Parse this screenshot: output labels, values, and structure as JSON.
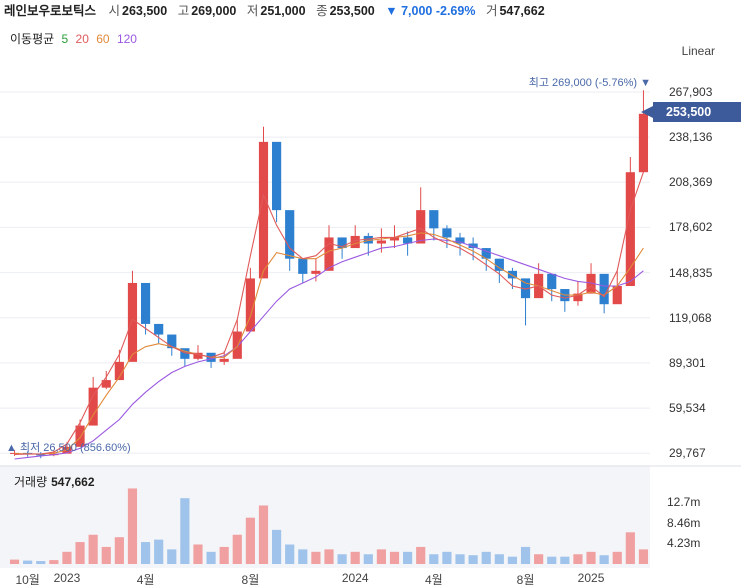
{
  "header": {
    "name": "레인보우로보틱스",
    "open_label": "시",
    "open": "263,500",
    "high_label": "고",
    "high": "269,000",
    "low_label": "저",
    "low": "251,000",
    "close_label": "종",
    "close": "253,500",
    "change": "▼ 7,000 -2.69%",
    "volume_label": "거",
    "volume": "547,662"
  },
  "ma_legend": {
    "title": "이동평균",
    "ma5": "5",
    "ma20": "20",
    "ma60": "60",
    "ma120": "120"
  },
  "scale_mode": "Linear",
  "current_price_label": "253,500",
  "max_marker": "최고 269,000 (-5.76%) ▼",
  "min_marker": "▲ 최저 26,500 (856.60%)",
  "volume_panel": {
    "title": "거래량",
    "value": "547,662"
  },
  "colors": {
    "up": "#e24a4a",
    "down": "#2d7fd0",
    "ma5": "#2a9d3a",
    "ma20": "#e05a5a",
    "ma60": "#e08a3a",
    "ma120": "#9b59e0",
    "accent": "#3d5a9b"
  },
  "chart_data": {
    "type": "candlestick",
    "y_ticks": [
      "267,903",
      "238,136",
      "208,369",
      "178,602",
      "148,835",
      "119,068",
      "89,301",
      "59,534",
      "29,767"
    ],
    "y_tick_values": [
      267903,
      238136,
      208369,
      178602,
      148835,
      119068,
      89301,
      59534,
      29767
    ],
    "ylim": [
      24000,
      285000
    ],
    "x_ticks": [
      "10월",
      "2023",
      "4월",
      "8월",
      "2024",
      "4월",
      "8월",
      "2025"
    ],
    "x_tick_index": [
      1,
      4,
      10,
      18,
      26,
      32,
      39,
      44
    ],
    "volume_ticks": [
      "12.7m",
      "8.46m",
      "4.23m"
    ],
    "volume_tick_values": [
      12700000,
      8460000,
      4230000
    ],
    "volume_max": 16000000,
    "series_close": [
      30000,
      29000,
      28500,
      29500,
      34000,
      48000,
      73000,
      78000,
      90000,
      142000,
      115000,
      108000,
      99000,
      92000,
      96000,
      90000,
      92000,
      110000,
      145000,
      235000,
      190000,
      158000,
      148000,
      150000,
      172000,
      165000,
      173000,
      168000,
      170000,
      172000,
      168000,
      190000,
      178000,
      172000,
      168000,
      165000,
      158000,
      150000,
      145000,
      132000,
      148000,
      138000,
      130000,
      135000,
      148000,
      128000,
      140000,
      215000,
      253500
    ],
    "series_high": [
      32000,
      31000,
      30500,
      31500,
      37000,
      52000,
      80000,
      84000,
      98000,
      150000,
      122000,
      115000,
      104000,
      97000,
      101000,
      95000,
      97000,
      118000,
      152000,
      245000,
      205000,
      165000,
      155000,
      158000,
      180000,
      172000,
      180000,
      175000,
      178000,
      180000,
      176000,
      205000,
      186000,
      180000,
      175000,
      172000,
      165000,
      158000,
      152000,
      140000,
      155000,
      145000,
      138000,
      143000,
      155000,
      135000,
      150000,
      225000,
      269000
    ],
    "series_low": [
      28000,
      27500,
      26500,
      27800,
      31000,
      43000,
      68000,
      72000,
      85000,
      135000,
      108000,
      102000,
      94000,
      87000,
      91000,
      86000,
      88000,
      104000,
      138000,
      220000,
      182000,
      150000,
      142000,
      143000,
      165000,
      158000,
      166000,
      160000,
      162000,
      165000,
      160000,
      182000,
      170000,
      165000,
      160000,
      157000,
      150000,
      142000,
      138000,
      114000,
      140000,
      130000,
      123000,
      127000,
      140000,
      122000,
      132000,
      205000,
      251000
    ],
    "ma20": [
      29000,
      29200,
      29300,
      30500,
      36000,
      50000,
      68000,
      80000,
      95000,
      118000,
      112000,
      106000,
      100000,
      96000,
      95000,
      93000,
      96000,
      118000,
      160000,
      200000,
      180000,
      165000,
      158000,
      160000,
      168000,
      166000,
      170000,
      171000,
      172000,
      172000,
      175000,
      178000,
      172000,
      168000,
      165000,
      160000,
      154000,
      148000,
      140000,
      138000,
      140000,
      134000,
      132000,
      134000,
      140000,
      133000,
      150000,
      190000,
      215000
    ],
    "ma60": [
      29500,
      29400,
      29200,
      29800,
      32000,
      40000,
      55000,
      68000,
      80000,
      95000,
      100000,
      102000,
      100000,
      97000,
      95000,
      93000,
      93000,
      100000,
      120000,
      150000,
      162000,
      160000,
      158000,
      158000,
      163000,
      165000,
      168000,
      170000,
      171000,
      172000,
      173000,
      175000,
      174000,
      171000,
      167000,
      163000,
      158000,
      152000,
      147000,
      142000,
      140000,
      137000,
      134000,
      134000,
      136000,
      134000,
      140000,
      152000,
      165000
    ],
    "ma120": [
      26000,
      27000,
      28000,
      28800,
      30000,
      33000,
      38000,
      45000,
      52000,
      62000,
      70000,
      77000,
      83000,
      87000,
      90000,
      92000,
      94000,
      100000,
      110000,
      120000,
      130000,
      138000,
      142000,
      146000,
      152000,
      156000,
      159000,
      162000,
      165000,
      166000,
      168000,
      170000,
      171000,
      170000,
      169000,
      166000,
      163000,
      160000,
      157000,
      154000,
      151000,
      148000,
      145000,
      143000,
      142000,
      140000,
      140000,
      143000,
      150000
    ],
    "volume": [
      900000,
      700000,
      600000,
      800000,
      2500000,
      4500000,
      6000000,
      3500000,
      5500000,
      15500000,
      4500000,
      5000000,
      3000000,
      13500000,
      4000000,
      2500000,
      3500000,
      6000000,
      9500000,
      12000000,
      7000000,
      4000000,
      3000000,
      2500000,
      3000000,
      2000000,
      2500000,
      2000000,
      3000000,
      2500000,
      2500000,
      3500000,
      2000000,
      2500000,
      2000000,
      1800000,
      2500000,
      2000000,
      1500000,
      3500000,
      2000000,
      1500000,
      1500000,
      2000000,
      2500000,
      1800000,
      2500000,
      6500000,
      3000000
    ]
  }
}
